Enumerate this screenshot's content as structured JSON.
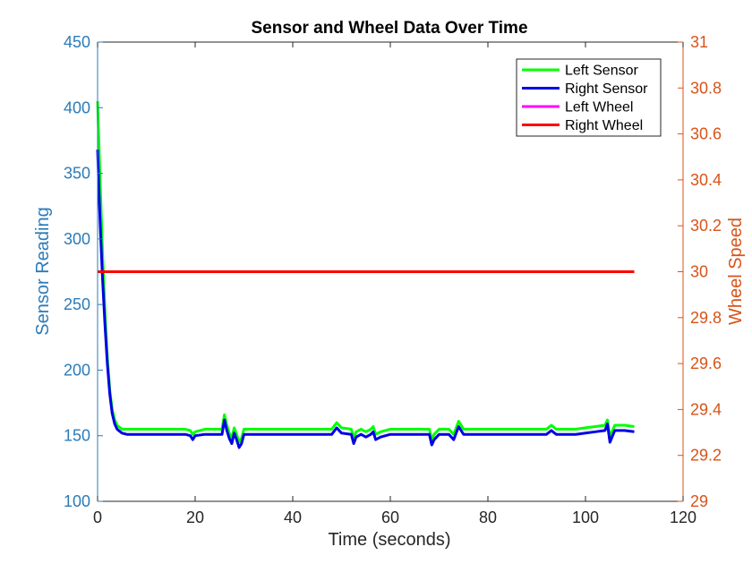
{
  "chart_data": {
    "type": "line",
    "title": "Sensor and Wheel Data Over Time",
    "xlabel": "Time (seconds)",
    "ylabel_left": "Sensor Reading",
    "ylabel_right": "Wheel Speed",
    "xlim": [
      0,
      120
    ],
    "ylim_left": [
      100,
      450
    ],
    "ylim_right": [
      29,
      31
    ],
    "xticks": [
      0,
      20,
      40,
      60,
      80,
      100,
      120
    ],
    "yticks_left": [
      100,
      150,
      200,
      250,
      300,
      350,
      400,
      450
    ],
    "yticks_right": [
      "29",
      "29.2",
      "29.4",
      "29.6",
      "29.8",
      "30",
      "30.2",
      "30.4",
      "30.6",
      "30.8",
      "31"
    ],
    "grid": false,
    "legend_position": "top-right",
    "series": [
      {
        "name": "Left Sensor",
        "axis": "left",
        "color": "#00ff00",
        "x": [
          0,
          0.3,
          0.6,
          1,
          1.5,
          2,
          2.5,
          3,
          3.5,
          4,
          5,
          6,
          8,
          10,
          12,
          14,
          16,
          18,
          19,
          19.5,
          20,
          22,
          24,
          25.5,
          26,
          26.5,
          27,
          27.5,
          28,
          28.5,
          29,
          29.5,
          30,
          31,
          32,
          35,
          40,
          45,
          48,
          49,
          50,
          52,
          52.5,
          53,
          54,
          55,
          56,
          56.5,
          57,
          58,
          60,
          62,
          64,
          66,
          68,
          68.5,
          69,
          70,
          72,
          73,
          74,
          75,
          76,
          78,
          80,
          82,
          84,
          86,
          88,
          90,
          92,
          93,
          94,
          96,
          98,
          100,
          102,
          104,
          104.5,
          105,
          106,
          108,
          110
        ],
        "y": [
          405,
          370,
          335,
          290,
          245,
          210,
          185,
          170,
          162,
          158,
          155,
          155,
          155,
          155,
          155,
          155,
          155,
          155,
          154,
          151,
          153,
          155,
          155,
          155,
          166,
          158,
          152,
          148,
          156,
          151,
          145,
          148,
          155,
          155,
          155,
          155,
          155,
          155,
          155,
          160,
          156,
          155,
          148,
          153,
          155,
          153,
          155,
          157,
          151,
          153,
          155,
          155,
          155,
          155,
          155,
          147,
          151,
          155,
          155,
          151,
          161,
          155,
          155,
          155,
          155,
          155,
          155,
          155,
          155,
          155,
          155,
          158,
          155,
          155,
          155,
          156,
          157,
          158,
          162,
          149,
          158,
          158,
          157
        ]
      },
      {
        "name": "Right Sensor",
        "axis": "left",
        "color": "#0000e6",
        "x": [
          0,
          0.3,
          0.6,
          1,
          1.5,
          2,
          2.5,
          3,
          3.5,
          4,
          5,
          6,
          8,
          10,
          12,
          14,
          16,
          18,
          19,
          19.5,
          20,
          22,
          24,
          25.5,
          26,
          26.5,
          27,
          27.5,
          28,
          28.5,
          29,
          29.5,
          30,
          31,
          32,
          35,
          40,
          45,
          48,
          49,
          50,
          52,
          52.5,
          53,
          54,
          55,
          56,
          56.5,
          57,
          58,
          60,
          62,
          64,
          66,
          68,
          68.5,
          69,
          70,
          72,
          73,
          74,
          75,
          76,
          78,
          80,
          82,
          84,
          86,
          88,
          90,
          92,
          93,
          94,
          96,
          98,
          100,
          102,
          104,
          104.5,
          105,
          106,
          108,
          110
        ],
        "y": [
          368,
          335,
          305,
          270,
          235,
          205,
          182,
          167,
          159,
          155,
          152,
          151,
          151,
          151,
          151,
          151,
          151,
          151,
          150,
          147,
          150,
          151,
          151,
          151,
          162,
          154,
          148,
          144,
          152,
          147,
          141,
          144,
          151,
          151,
          151,
          151,
          151,
          151,
          151,
          156,
          152,
          151,
          144,
          149,
          151,
          149,
          151,
          153,
          147,
          149,
          151,
          151,
          151,
          151,
          151,
          143,
          147,
          151,
          151,
          147,
          157,
          151,
          151,
          151,
          151,
          151,
          151,
          151,
          151,
          151,
          151,
          154,
          151,
          151,
          151,
          152,
          153,
          154,
          159,
          145,
          154,
          154,
          153
        ]
      },
      {
        "name": "Left Wheel",
        "axis": "right",
        "color": "#ff00ff",
        "x": [
          0,
          110
        ],
        "y": [
          30,
          30
        ]
      },
      {
        "name": "Right Wheel",
        "axis": "right",
        "color": "#ff0000",
        "x": [
          0,
          110
        ],
        "y": [
          30,
          30
        ]
      }
    ]
  }
}
